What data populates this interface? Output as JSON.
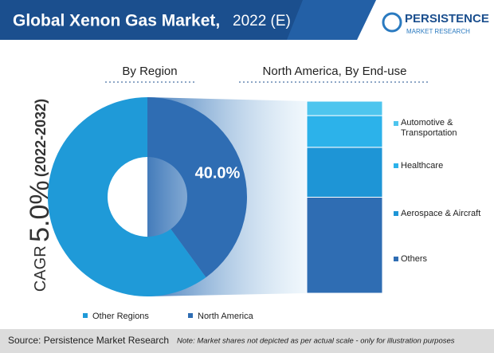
{
  "header": {
    "title": "Global Xenon Gas Market,",
    "title_suffix": "2022 (E)"
  },
  "logo": {
    "name": "PERSISTENCE",
    "tagline": "MARKET RESEARCH"
  },
  "cagr": {
    "label": "CAGR",
    "value": "5.0%",
    "period": "(2022-2032)"
  },
  "chart_data": [
    {
      "type": "donut",
      "title": "By Region",
      "categories": [
        "Other Regions",
        "North America"
      ],
      "values": [
        60,
        40
      ],
      "value_labels": [
        null,
        "40.0%"
      ],
      "colors": [
        "#1f9ad8",
        "#2f6db3"
      ]
    },
    {
      "type": "stacked-bar",
      "title": "North America, By End-use",
      "series": [
        {
          "name": "Automotive & Transportation",
          "color": "#4ec5ee",
          "values": [
            7.5
          ]
        },
        {
          "name": "Healthcare",
          "color": "#2cb2ea",
          "values": [
            16.5
          ]
        },
        {
          "name": "Aerospace & Aircraft",
          "color": "#1e95d6",
          "values": [
            26
          ]
        },
        {
          "name": "Others",
          "color": "#2f6db3",
          "values": [
            50
          ]
        }
      ]
    }
  ],
  "footer": {
    "source": "Source: Persistence Market Research",
    "note": "Note: Market shares not depicted as per actual scale - only for illustration purposes"
  }
}
